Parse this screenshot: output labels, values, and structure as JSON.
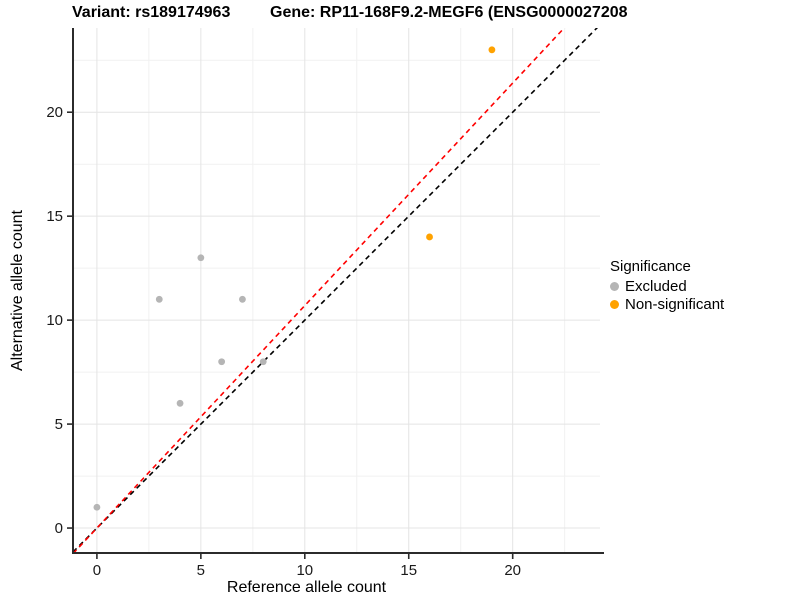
{
  "header": {
    "variant_title": "Variant: rs189174963",
    "gene_title": "Gene: RP11-168F9.2-MEGF6 (ENSG0000027208"
  },
  "chart_data": {
    "type": "scatter",
    "xlabel": "Reference allele count",
    "ylabel": "Alternative allele count",
    "xlim": [
      -1.15,
      24.2
    ],
    "ylim": [
      -1.2,
      24.05
    ],
    "xticks": [
      0,
      5,
      10,
      15,
      20
    ],
    "yticks": [
      0,
      5,
      10,
      15,
      20
    ],
    "x_minor_ticks": [
      2.5,
      7.5,
      12.5,
      17.5,
      22.5
    ],
    "y_minor_ticks": [
      2.5,
      7.5,
      12.5,
      17.5,
      22.5
    ],
    "grid": "major-and-minor",
    "series": [
      {
        "name": "Excluded",
        "color": "#b5b5b5",
        "points": [
          [
            0,
            1
          ],
          [
            3,
            11
          ],
          [
            4,
            6
          ],
          [
            5,
            13
          ],
          [
            6,
            8
          ],
          [
            7,
            11
          ],
          [
            8,
            8
          ]
        ]
      },
      {
        "name": "Non-significant",
        "color": "#ffa200",
        "points": [
          [
            16,
            14
          ],
          [
            19,
            23
          ]
        ]
      }
    ],
    "lines": [
      {
        "name": "identity-line",
        "color": "#000000",
        "style": "dashed",
        "slope": 1.0,
        "intercept": 0
      },
      {
        "name": "fit-line",
        "color": "#ff0000",
        "style": "dashed",
        "slope": 1.07,
        "intercept": 0
      }
    ],
    "legend": {
      "title": "Significance",
      "position": "right",
      "entries": [
        {
          "label": "Excluded",
          "color": "#b5b5b5"
        },
        {
          "label": "Non-significant",
          "color": "#ffa200"
        }
      ]
    },
    "colors": {
      "major_grid": "#e4e4e4",
      "minor_grid": "#f1f1f1",
      "axis_line": "#2b2b2b",
      "tick_text": "#1a1a1a"
    }
  }
}
